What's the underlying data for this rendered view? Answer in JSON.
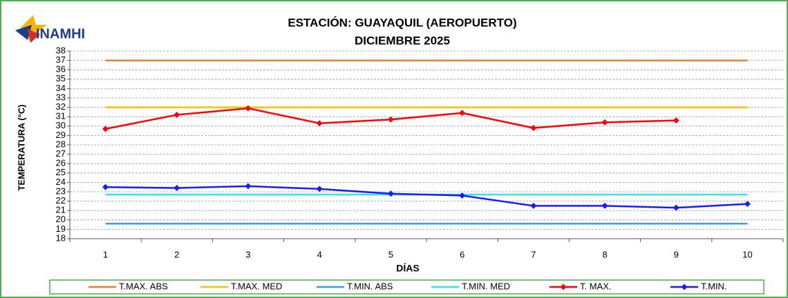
{
  "logo": "INAMHI",
  "chart_data": {
    "type": "line",
    "title": "ESTACIÓN: GUAYAQUIL (AEROPUERTO)",
    "subtitle": "DICIEMBRE 2025",
    "y_label": "TEMPERATURA (°C)",
    "x_label": "DÍAS",
    "categories": [
      "1",
      "2",
      "3",
      "4",
      "5",
      "6",
      "7",
      "8",
      "9",
      "10"
    ],
    "ylim": [
      18,
      38
    ],
    "yticks": [
      18,
      19,
      20,
      21,
      22,
      23,
      24,
      25,
      26,
      27,
      28,
      29,
      30,
      31,
      32,
      33,
      34,
      35,
      36,
      37,
      38
    ],
    "grid": true,
    "legend": "bottom",
    "series": [
      {
        "name": "T.MAX. ABS",
        "color": "#ed7d31",
        "values": [
          37,
          37,
          37,
          37,
          37,
          37,
          37,
          37,
          37,
          37
        ]
      },
      {
        "name": "T.MAX. MED",
        "color": "#ffc000",
        "values": [
          32,
          32,
          32,
          32,
          32,
          32,
          32,
          32,
          32,
          32
        ]
      },
      {
        "name": "T.MIN. ABS",
        "color": "#3d9be9",
        "values": [
          19.6,
          19.6,
          19.6,
          19.6,
          19.6,
          19.6,
          19.6,
          19.6,
          19.6,
          19.6
        ]
      },
      {
        "name": "T.MIN. MED",
        "color": "#33e3ea",
        "values": [
          22.7,
          22.7,
          22.7,
          22.7,
          22.7,
          22.7,
          22.7,
          22.7,
          22.7,
          22.7
        ]
      },
      {
        "name": "T. MAX.",
        "color": "#ff0000",
        "marker": "diamond",
        "values": [
          29.7,
          31.2,
          31.9,
          30.3,
          30.7,
          31.4,
          29.8,
          30.4,
          30.6,
          null
        ]
      },
      {
        "name": "T.MIN.",
        "color": "#1a1aff",
        "marker": "diamond",
        "values": [
          23.5,
          23.4,
          23.6,
          23.3,
          22.8,
          22.6,
          21.5,
          21.5,
          21.3,
          21.7
        ]
      }
    ]
  }
}
